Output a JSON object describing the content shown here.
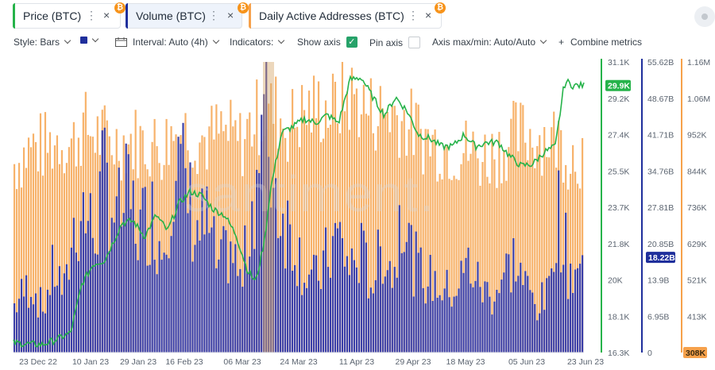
{
  "tabs": [
    {
      "label": "Price (BTC)",
      "color": "#26b34a",
      "selected": false,
      "icon": "bitcoin-icon"
    },
    {
      "label": "Volume (BTC)",
      "color": "#1f2f9c",
      "selected": true,
      "icon": "bitcoin-icon"
    },
    {
      "label": "Daily Active Addresses (BTC)",
      "color": "#f6a14b",
      "selected": false,
      "icon": "bitcoin-icon"
    }
  ],
  "tab_icons": {
    "menu": "⋮",
    "close": "×",
    "bitcoin": "₿"
  },
  "toolbar": {
    "style": "Style: Bars",
    "interval": "Interval: Auto (4h)",
    "indicators": "Indicators:",
    "show_axis": "Show axis",
    "pin_axis": "Pin axis",
    "axis_maxmin": "Axis max/min: Auto/Auto",
    "combine_prefix": "+",
    "combine": "Combine metrics",
    "show_axis_checked": true,
    "pin_axis_checked": false,
    "check_glyph": "✓",
    "series_color": "#1f2f9c"
  },
  "watermark": "santiment.",
  "chart_data": {
    "type": "bar",
    "x_labels": [
      "23 Dec 22",
      "10 Jan 23",
      "29 Jan 23",
      "16 Feb 23",
      "06 Mar 23",
      "24 Mar 23",
      "11 Apr 23",
      "29 Apr 23",
      "18 May 23",
      "05 Jun 23",
      "23 Jun 23"
    ],
    "x_range": [
      "2022-12-23",
      "2023-06-23"
    ],
    "axes": [
      {
        "name": "price",
        "color": "#26b34a",
        "ticks": [
          "31.1K",
          "29.2K",
          "27.4K",
          "25.5K",
          "23.7K",
          "21.8K",
          "20K",
          "18.1K",
          "16.3K"
        ],
        "range": [
          16300,
          31100
        ],
        "current_label": "29.9K",
        "current": 29900
      },
      {
        "name": "volume",
        "color": "#1f2f9c",
        "ticks": [
          "55.62B",
          "48.67B",
          "41.71B",
          "34.76B",
          "27.81B",
          "20.85B",
          "13.9B",
          "6.95B",
          "0"
        ],
        "range": [
          0,
          55620000000
        ],
        "current_label": "18.22B",
        "current": 18220000000
      },
      {
        "name": "daily_active_addresses",
        "color": "#f6a14b",
        "ticks": [
          "1.16M",
          "1.06M",
          "952K",
          "844K",
          "736K",
          "629K",
          "521K",
          "413K",
          "308K"
        ],
        "range": [
          308000,
          1160000
        ],
        "current_label": "308K",
        "current": 308000
      }
    ],
    "series": [
      {
        "name": "Price (BTC)",
        "type": "line",
        "color": "#26b34a",
        "anchors": [
          [
            0,
            16800
          ],
          [
            0.02,
            16750
          ],
          [
            0.05,
            16700
          ],
          [
            0.07,
            16900
          ],
          [
            0.1,
            17300
          ],
          [
            0.12,
            19800
          ],
          [
            0.14,
            20800
          ],
          [
            0.16,
            21000
          ],
          [
            0.19,
            22900
          ],
          [
            0.21,
            23000
          ],
          [
            0.23,
            22200
          ],
          [
            0.25,
            23300
          ],
          [
            0.27,
            22500
          ],
          [
            0.29,
            23900
          ],
          [
            0.31,
            24500
          ],
          [
            0.33,
            24300
          ],
          [
            0.35,
            23600
          ],
          [
            0.37,
            23300
          ],
          [
            0.39,
            22300
          ],
          [
            0.41,
            20500
          ],
          [
            0.425,
            19900
          ],
          [
            0.44,
            22000
          ],
          [
            0.45,
            24500
          ],
          [
            0.47,
            27500
          ],
          [
            0.49,
            27800
          ],
          [
            0.51,
            28200
          ],
          [
            0.53,
            28000
          ],
          [
            0.55,
            28400
          ],
          [
            0.57,
            28000
          ],
          [
            0.59,
            30200
          ],
          [
            0.61,
            30300
          ],
          [
            0.63,
            29300
          ],
          [
            0.65,
            28400
          ],
          [
            0.67,
            29300
          ],
          [
            0.69,
            28600
          ],
          [
            0.71,
            27400
          ],
          [
            0.73,
            27200
          ],
          [
            0.75,
            26800
          ],
          [
            0.77,
            26800
          ],
          [
            0.79,
            27400
          ],
          [
            0.81,
            26800
          ],
          [
            0.83,
            27000
          ],
          [
            0.85,
            27000
          ],
          [
            0.87,
            26300
          ],
          [
            0.89,
            25800
          ],
          [
            0.91,
            25900
          ],
          [
            0.93,
            26500
          ],
          [
            0.95,
            26800
          ],
          [
            0.965,
            29900
          ],
          [
            0.97,
            30100
          ],
          [
            0.98,
            29900
          ]
        ]
      },
      {
        "name": "Volume (BTC)",
        "type": "bar",
        "color": "#3b3fa8",
        "anchors": [
          [
            0,
            10
          ],
          [
            0.03,
            15
          ],
          [
            0.05,
            9
          ],
          [
            0.07,
            18
          ],
          [
            0.09,
            12
          ],
          [
            0.1,
            24
          ],
          [
            0.12,
            31
          ],
          [
            0.14,
            25
          ],
          [
            0.16,
            38
          ],
          [
            0.18,
            28
          ],
          [
            0.2,
            33
          ],
          [
            0.22,
            26
          ],
          [
            0.24,
            30
          ],
          [
            0.26,
            22
          ],
          [
            0.28,
            40
          ],
          [
            0.3,
            36
          ],
          [
            0.32,
            26
          ],
          [
            0.34,
            27
          ],
          [
            0.36,
            17
          ],
          [
            0.38,
            23
          ],
          [
            0.4,
            14
          ],
          [
            0.42,
            33
          ],
          [
            0.435,
            45
          ],
          [
            0.445,
            48
          ],
          [
            0.455,
            38
          ],
          [
            0.47,
            30
          ],
          [
            0.49,
            25
          ],
          [
            0.51,
            18
          ],
          [
            0.53,
            15
          ],
          [
            0.55,
            20
          ],
          [
            0.57,
            25
          ],
          [
            0.59,
            18
          ],
          [
            0.61,
            21
          ],
          [
            0.63,
            15
          ],
          [
            0.65,
            23
          ],
          [
            0.67,
            16
          ],
          [
            0.68,
            36
          ],
          [
            0.7,
            20
          ],
          [
            0.72,
            16
          ],
          [
            0.74,
            15
          ],
          [
            0.76,
            13
          ],
          [
            0.78,
            14
          ],
          [
            0.8,
            19
          ],
          [
            0.82,
            14
          ],
          [
            0.84,
            12
          ],
          [
            0.86,
            16
          ],
          [
            0.88,
            20
          ],
          [
            0.9,
            14
          ],
          [
            0.92,
            10
          ],
          [
            0.94,
            12
          ],
          [
            0.955,
            32
          ],
          [
            0.965,
            26
          ],
          [
            0.975,
            18
          ]
        ]
      },
      {
        "name": "Daily Active Addresses (BTC)",
        "type": "bar",
        "color": "#f7b26a",
        "anchors": [
          [
            0,
            880
          ],
          [
            0.03,
            930
          ],
          [
            0.06,
            930
          ],
          [
            0.08,
            960
          ],
          [
            0.1,
            930
          ],
          [
            0.12,
            990
          ],
          [
            0.15,
            960
          ],
          [
            0.18,
            940
          ],
          [
            0.21,
            950
          ],
          [
            0.23,
            940
          ],
          [
            0.26,
            930
          ],
          [
            0.28,
            970
          ],
          [
            0.3,
            980
          ],
          [
            0.32,
            960
          ],
          [
            0.34,
            950
          ],
          [
            0.36,
            970
          ],
          [
            0.38,
            960
          ],
          [
            0.4,
            940
          ],
          [
            0.42,
            1010
          ],
          [
            0.44,
            1030
          ],
          [
            0.46,
            1040
          ],
          [
            0.48,
            990
          ],
          [
            0.5,
            1020
          ],
          [
            0.52,
            1040
          ],
          [
            0.54,
            1050
          ],
          [
            0.56,
            1040
          ],
          [
            0.58,
            1080
          ],
          [
            0.6,
            1080
          ],
          [
            0.62,
            1040
          ],
          [
            0.64,
            1030
          ],
          [
            0.66,
            1040
          ],
          [
            0.68,
            1020
          ],
          [
            0.7,
            990
          ],
          [
            0.72,
            960
          ],
          [
            0.74,
            940
          ],
          [
            0.76,
            930
          ],
          [
            0.78,
            920
          ],
          [
            0.8,
            920
          ],
          [
            0.82,
            900
          ],
          [
            0.84,
            910
          ],
          [
            0.86,
            930
          ],
          [
            0.88,
            960
          ],
          [
            0.9,
            970
          ],
          [
            0.92,
            960
          ],
          [
            0.94,
            960
          ],
          [
            0.96,
            950
          ],
          [
            0.975,
            910
          ]
        ]
      }
    ]
  }
}
